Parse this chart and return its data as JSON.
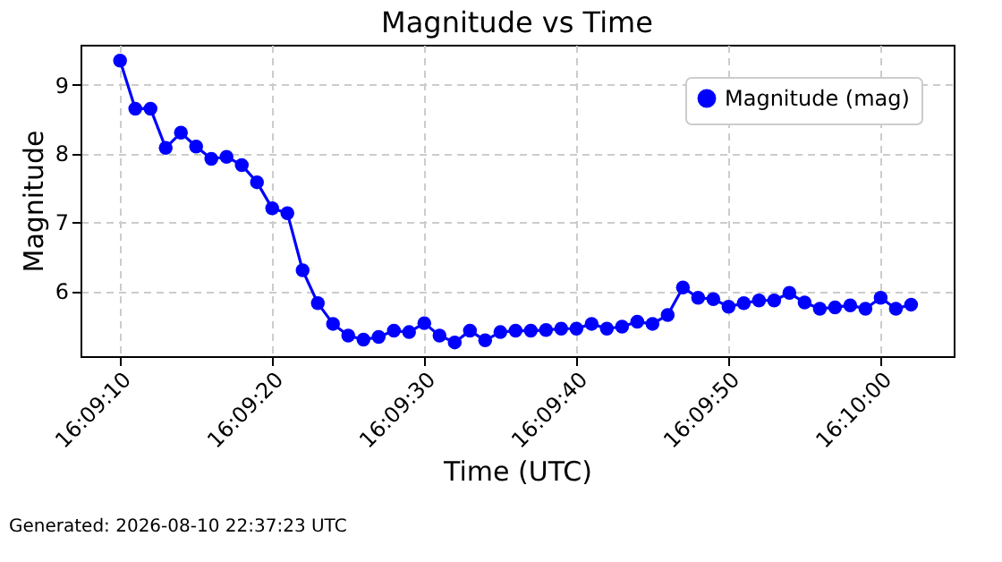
{
  "chart_data": {
    "type": "line",
    "title": "Magnitude vs Time",
    "xlabel": "Time (UTC)",
    "ylabel": "Magnitude",
    "annotations": [
      "Generated: 2026-08-10 22:37:23 UTC"
    ],
    "x": [
      "2026-08-10T16:09:10",
      "2026-08-10T16:09:11",
      "2026-08-10T16:09:12",
      "2026-08-10T16:09:13",
      "2026-08-10T16:09:14",
      "2026-08-10T16:09:15",
      "2026-08-10T16:09:16",
      "2026-08-10T16:09:17",
      "2026-08-10T16:09:18",
      "2026-08-10T16:09:19",
      "2026-08-10T16:09:20",
      "2026-08-10T16:09:21",
      "2026-08-10T16:09:22",
      "2026-08-10T16:09:23",
      "2026-08-10T16:09:24",
      "2026-08-10T16:09:25",
      "2026-08-10T16:09:26",
      "2026-08-10T16:09:27",
      "2026-08-10T16:09:28",
      "2026-08-10T16:09:29",
      "2026-08-10T16:09:30",
      "2026-08-10T16:09:31",
      "2026-08-10T16:09:32",
      "2026-08-10T16:09:33",
      "2026-08-10T16:09:34",
      "2026-08-10T16:09:35",
      "2026-08-10T16:09:36",
      "2026-08-10T16:09:37",
      "2026-08-10T16:09:38",
      "2026-08-10T16:09:39",
      "2026-08-10T16:09:40",
      "2026-08-10T16:09:41",
      "2026-08-10T16:09:42",
      "2026-08-10T16:09:43",
      "2026-08-10T16:09:44",
      "2026-08-10T16:09:45",
      "2026-08-10T16:09:46",
      "2026-08-10T16:09:47",
      "2026-08-10T16:09:48",
      "2026-08-10T16:09:49",
      "2026-08-10T16:09:50",
      "2026-08-10T16:09:51",
      "2026-08-10T16:09:52",
      "2026-08-10T16:09:53",
      "2026-08-10T16:09:54",
      "2026-08-10T16:09:55",
      "2026-08-10T16:09:56",
      "2026-08-10T16:09:57",
      "2026-08-10T16:09:58",
      "2026-08-10T16:09:59",
      "2026-08-10T16:10:00",
      "2026-08-10T16:10:01",
      "2026-08-10T16:10:02"
    ],
    "series": [
      {
        "name": "Magnitude (mag)",
        "color": "#0000ff",
        "values": [
          9.35,
          8.65,
          8.65,
          8.08,
          8.3,
          8.1,
          7.92,
          7.95,
          7.83,
          7.58,
          7.2,
          7.13,
          6.3,
          5.82,
          5.52,
          5.35,
          5.29,
          5.33,
          5.42,
          5.4,
          5.53,
          5.35,
          5.25,
          5.42,
          5.28,
          5.4,
          5.42,
          5.42,
          5.43,
          5.45,
          5.45,
          5.52,
          5.45,
          5.48,
          5.55,
          5.52,
          5.65,
          6.05,
          5.9,
          5.88,
          5.77,
          5.82,
          5.86,
          5.86,
          5.97,
          5.83,
          5.74,
          5.76,
          5.79,
          5.74,
          5.9,
          5.74,
          5.8
        ]
      }
    ],
    "xlim": [
      "2026-08-10T16:09:07.4",
      "2026-08-10T16:10:04.8"
    ],
    "xticks": [
      {
        "value": "2026-08-10T16:09:10",
        "label": "16:09:10"
      },
      {
        "value": "2026-08-10T16:09:20",
        "label": "16:09:20"
      },
      {
        "value": "2026-08-10T16:09:30",
        "label": "16:09:30"
      },
      {
        "value": "2026-08-10T16:09:40",
        "label": "16:09:40"
      },
      {
        "value": "2026-08-10T16:09:50",
        "label": "16:09:50"
      },
      {
        "value": "2026-08-10T16:10:00",
        "label": "16:10:00"
      }
    ],
    "ylim": [
      5.05,
      9.58
    ],
    "yticks": [
      6,
      7,
      8,
      9
    ],
    "grid": true,
    "legend": "top right",
    "marker": "circle",
    "line_style": "solid"
  }
}
